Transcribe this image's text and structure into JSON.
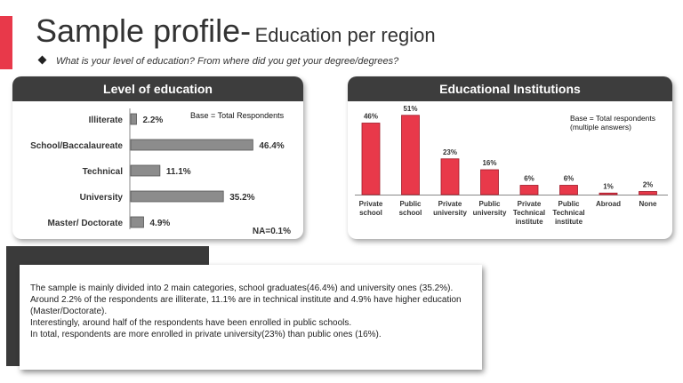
{
  "title": "Sample profile-",
  "subtitle": "Education per region",
  "question": "What is your level of education? From where did you get your degree/degrees?",
  "chart_data": [
    {
      "type": "bar",
      "orientation": "horizontal",
      "title": "Level of education",
      "note": "Base = Total Respondents",
      "footnote": "NA=0.1%",
      "categories": [
        "Illiterate",
        "School/Baccalaureate",
        "Technical",
        "University",
        "Master/ Doctorate"
      ],
      "values": [
        2.2,
        46.4,
        11.1,
        35.2,
        4.9
      ],
      "labels": [
        "2.2%",
        "46.4%",
        "11.1%",
        "35.2%",
        "4.9%"
      ],
      "color": "#8c8c8c",
      "xlim": [
        0,
        50
      ]
    },
    {
      "type": "bar",
      "title": "Educational Institutions",
      "note": [
        "Base = Total respondents",
        "(multiple answers)"
      ],
      "categories": [
        [
          "Private",
          "school"
        ],
        [
          "Public",
          "school"
        ],
        [
          "Private",
          "university"
        ],
        [
          "Public",
          "university"
        ],
        [
          "Private",
          "Technical",
          "institute"
        ],
        [
          "Public",
          "Technical",
          "institute"
        ],
        [
          "Abroad"
        ],
        [
          "None"
        ]
      ],
      "values": [
        46,
        51,
        23,
        16,
        6,
        6,
        1,
        2
      ],
      "labels": [
        "46%",
        "51%",
        "23%",
        "16%",
        "6%",
        "6%",
        "1%",
        "2%"
      ],
      "color": "#e8394a",
      "ylim": [
        0,
        60
      ]
    }
  ],
  "summary": [
    "The sample is mainly divided into 2 main categories, school graduates(46.4%) and university ones (35.2%).",
    "Around 2.2% of the respondents are illiterate, 11.1% are in technical institute and 4.9% have higher education (Master/Doctorate).",
    "Interestingly, around half of the respondents have been enrolled in public schools.",
    "In total, respondents are more enrolled in private university(23%) than public ones (16%)."
  ]
}
